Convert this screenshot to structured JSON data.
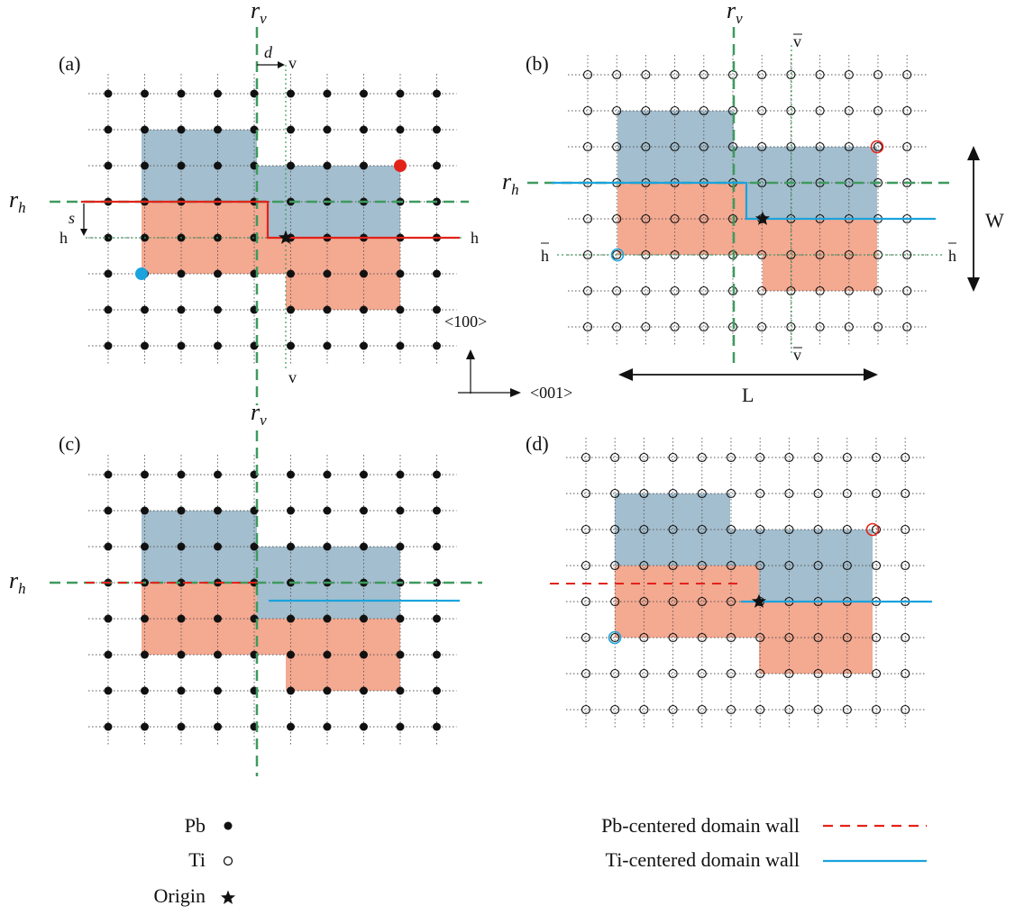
{
  "colors": {
    "blue_domain": "#A3BECE",
    "orange_domain": "#F4A991",
    "green_dash": "#3E9A5E",
    "red": "#E2231A",
    "cyan": "#1AA3DD",
    "black": "#111111"
  },
  "panels": {
    "a": {
      "label": "(a)"
    },
    "b": {
      "label": "(b)"
    },
    "c": {
      "label": "(c)"
    },
    "d": {
      "label": "(d)"
    }
  },
  "annotations": {
    "r": "r",
    "sub_v": "v",
    "sub_h": "h",
    "d": "d",
    "s": "s",
    "v": "v",
    "h": "h",
    "vbar": "v",
    "hbar": "h",
    "W": "W",
    "L": "L",
    "dir_100": "<100>",
    "dir_001": "<001>"
  },
  "legend": {
    "pb": {
      "label": "Pb",
      "icon": "filled-circle"
    },
    "ti": {
      "label": "Ti",
      "icon": "open-circle"
    },
    "origin": {
      "label": "Origin",
      "icon": "star"
    },
    "pb_wall": {
      "label": "Pb-centered domain wall",
      "style": "red-dashed"
    },
    "ti_wall": {
      "label": "Ti-centered domain wall",
      "style": "cyan-solid"
    }
  }
}
